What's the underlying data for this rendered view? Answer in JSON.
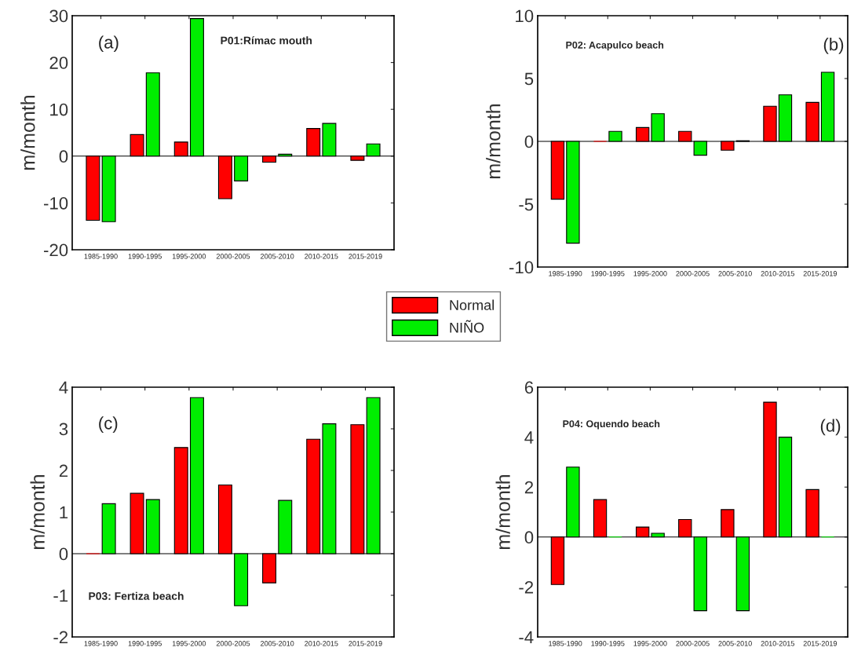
{
  "chart_data": [
    {
      "type": "bar",
      "ylabel": "m/month",
      "annotations": [
        "(a)",
        "P01:Rímac mouth"
      ],
      "categories": [
        "1985-1990",
        "1990-1995",
        "1995-2000",
        "2000-2005",
        "2005-2010",
        "2010-2015",
        "2015-2019"
      ],
      "ylim": [
        -20,
        30
      ],
      "yticks": [
        -20,
        -10,
        0,
        10,
        20,
        30
      ],
      "legend": "bottom",
      "grid": false,
      "ref_lines": [
        {
          "axis": "y",
          "value": 0
        }
      ],
      "series": [
        {
          "name": "Normal",
          "color": "#ff0000",
          "values": [
            -13.7,
            4.6,
            3.0,
            -9.1,
            -1.3,
            5.9,
            -0.9
          ]
        },
        {
          "name": "NIÑO",
          "color": "#00ee00",
          "values": [
            -14.0,
            17.8,
            29.4,
            -5.3,
            0.4,
            7.0,
            2.6
          ]
        }
      ]
    },
    {
      "type": "bar",
      "ylabel": "m/month",
      "annotations": [
        "P02: Acapulco beach",
        "(b)"
      ],
      "categories": [
        "1985-1990",
        "1990-1995",
        "1995-2000",
        "2000-2005",
        "2005-2010",
        "2010-2015",
        "2015-2019"
      ],
      "ylim": [
        -10,
        10
      ],
      "yticks": [
        -10,
        -5,
        0,
        5,
        10
      ],
      "grid": false,
      "ref_lines": [
        {
          "axis": "y",
          "value": 0
        }
      ],
      "series": [
        {
          "color": "#ff0000",
          "values": [
            -4.6,
            0,
            1.1,
            0.8,
            -0.7,
            2.8,
            3.1
          ]
        },
        {
          "color": "#00ee00",
          "values": [
            -8.1,
            0.8,
            2.2,
            -1.1,
            0.05,
            3.7,
            5.5
          ]
        }
      ]
    },
    {
      "type": "bar",
      "ylabel": "m/month",
      "annotations": [
        "(c)",
        "P03: Fertiza beach"
      ],
      "categories": [
        "1985-1990",
        "1990-1995",
        "1995-2000",
        "2000-2005",
        "2005-2010",
        "2010-2015",
        "2015-2019"
      ],
      "ylim": [
        -2,
        4
      ],
      "yticks": [
        -2,
        -1,
        0,
        1,
        2,
        3,
        4
      ],
      "grid": false,
      "ref_lines": [
        {
          "axis": "y",
          "value": 0
        }
      ],
      "series": [
        {
          "color": "#ff0000",
          "values": [
            0,
            1.45,
            2.55,
            1.65,
            -0.7,
            2.75,
            3.1
          ]
        },
        {
          "color": "#00ee00",
          "values": [
            1.2,
            1.3,
            3.75,
            -1.25,
            1.28,
            3.12,
            3.75
          ]
        }
      ]
    },
    {
      "type": "bar",
      "ylabel": "m/month",
      "annotations": [
        "P04: Oquendo beach",
        "(d)"
      ],
      "categories": [
        "1985-1990",
        "1990-1995",
        "1995-2000",
        "2000-2005",
        "2005-2010",
        "2010-2015",
        "2015-2019"
      ],
      "ylim": [
        -4,
        6
      ],
      "yticks": [
        -4,
        -2,
        0,
        2,
        4,
        6
      ],
      "grid": false,
      "ref_lines": [
        {
          "axis": "y",
          "value": 0
        }
      ],
      "series": [
        {
          "color": "#ff0000",
          "values": [
            -1.9,
            1.5,
            0.4,
            0.7,
            1.1,
            5.4,
            1.9
          ]
        },
        {
          "color": "#00ee00",
          "values": [
            2.8,
            0,
            0.15,
            -2.95,
            -2.95,
            4.0,
            0
          ]
        }
      ]
    }
  ]
}
